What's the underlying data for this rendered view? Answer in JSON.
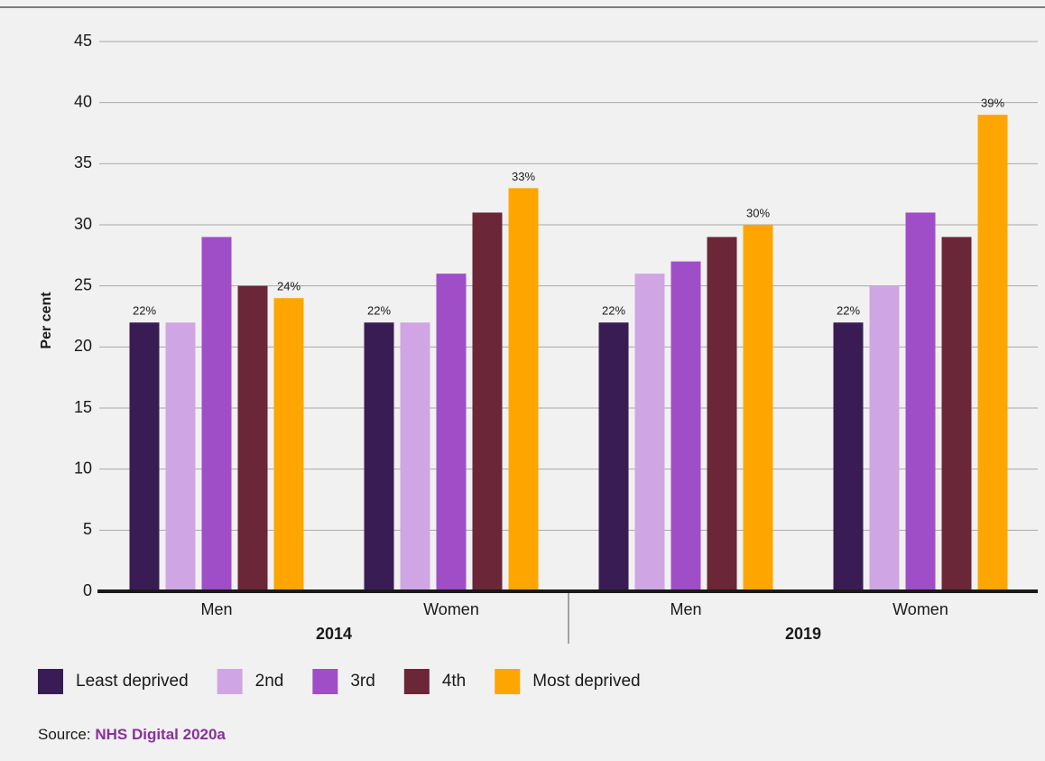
{
  "chart_data": {
    "type": "bar",
    "y_label": "Per cent",
    "categories": [
      "Men",
      "Women",
      "Men",
      "Women"
    ],
    "category_groups": [
      "2014",
      "2019"
    ],
    "ylim": [
      0,
      45
    ],
    "yticks": [
      0,
      5,
      10,
      15,
      20,
      25,
      30,
      35,
      40,
      45
    ],
    "grid": true,
    "legend": "bottom",
    "series": [
      {
        "name": "Least deprived",
        "color": "#3a1c54",
        "values": [
          22,
          22,
          22,
          22
        ],
        "value_labels": [
          "22%",
          "22%",
          "22%",
          "22%"
        ]
      },
      {
        "name": "2nd",
        "color": "#cfa6e3",
        "values": [
          22,
          22,
          26,
          25
        ]
      },
      {
        "name": "3rd",
        "color": "#a04ec8",
        "values": [
          29,
          26,
          27,
          31
        ]
      },
      {
        "name": "4th",
        "color": "#6b2637",
        "values": [
          25,
          31,
          29,
          29
        ]
      },
      {
        "name": "Most deprived",
        "color": "#ffa500",
        "values": [
          24,
          33,
          30,
          39
        ],
        "value_labels": [
          "24%",
          "33%",
          "30%",
          "39%"
        ]
      }
    ],
    "source_label": "Source:",
    "source": "NHS Digital 2020a"
  }
}
